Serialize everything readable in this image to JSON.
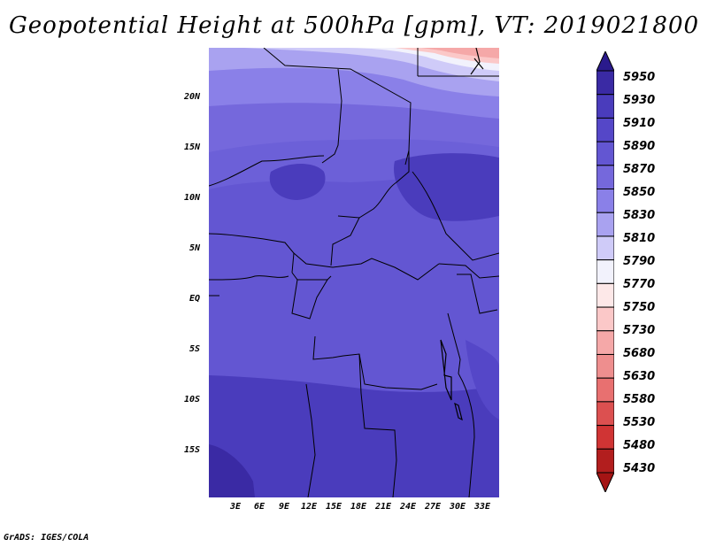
{
  "title": "Geopotential Height at 500hPa [gpm], VT: 2019021800",
  "variable": "Geopotential Height",
  "level": "500hPa",
  "units": "gpm",
  "valid_time": "2019021800",
  "lat_labels": [
    "20N",
    "15N",
    "10N",
    "5N",
    "EQ",
    "5S",
    "10S",
    "15S"
  ],
  "lon_labels": [
    "3E",
    "6E",
    "9E",
    "12E",
    "15E",
    "18E",
    "21E",
    "24E",
    "27E",
    "30E",
    "33E"
  ],
  "colorbar": {
    "levels": [
      "5950",
      "5930",
      "5910",
      "5890",
      "5870",
      "5850",
      "5830",
      "5810",
      "5790",
      "5770",
      "5750",
      "5730",
      "5680",
      "5630",
      "5580",
      "5530",
      "5480",
      "5430"
    ],
    "colors": [
      "#2a1a8c",
      "#3a2aa4",
      "#4a3cbc",
      "#5547c8",
      "#6356d2",
      "#7568dc",
      "#8a80e8",
      "#a9a2f0",
      "#cfcbf8",
      "#f2f2fc",
      "#fde8e8",
      "#fbc8c8",
      "#f5a8a8",
      "#ee8e8e",
      "#e87070",
      "#dc5050",
      "#d03434",
      "#b21e1e",
      "#a51414"
    ]
  },
  "footer": "GrADS: IGES/COLA"
}
